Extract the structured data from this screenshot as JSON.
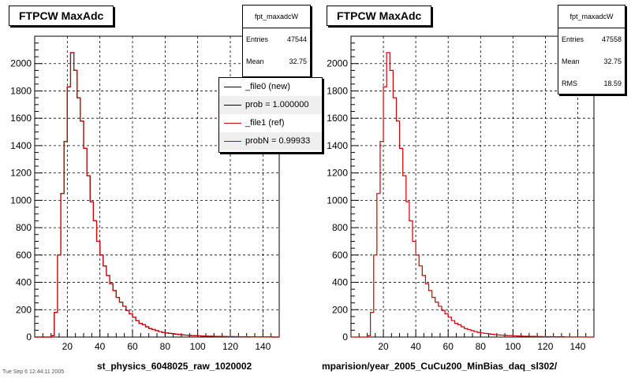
{
  "colors": {
    "new": "#000000",
    "ref": "#cc0000",
    "grid": "#000000"
  },
  "chart_data": [
    {
      "type": "line",
      "title": "FTPCW MaxAdc",
      "xlabel": "st_physics_6048025_raw_1020002",
      "xlim": [
        0,
        150
      ],
      "ylim": [
        0,
        2200
      ],
      "xticks": [
        20,
        40,
        60,
        80,
        100,
        120,
        140
      ],
      "yticks": [
        0,
        200,
        400,
        600,
        800,
        1000,
        1200,
        1400,
        1600,
        1800,
        2000
      ],
      "grid": true,
      "bin_width": 2,
      "x": [
        0,
        2,
        4,
        6,
        8,
        10,
        12,
        14,
        16,
        18,
        20,
        22,
        24,
        26,
        28,
        30,
        32,
        34,
        36,
        38,
        40,
        42,
        44,
        46,
        48,
        50,
        52,
        54,
        56,
        58,
        60,
        62,
        64,
        66,
        68,
        70,
        72,
        74,
        76,
        78,
        80,
        82,
        84,
        86,
        88,
        90,
        92,
        94,
        96,
        98,
        100,
        102,
        104,
        106,
        108,
        110,
        112,
        114,
        116,
        118,
        120,
        122,
        124,
        126,
        128,
        130,
        132,
        134,
        136,
        138,
        140,
        142,
        144,
        146,
        148
      ],
      "series": [
        {
          "name": "_file0 (new)",
          "values": [
            0,
            0,
            0,
            0,
            0,
            10,
            180,
            600,
            1050,
            1430,
            1830,
            2080,
            1950,
            1750,
            1580,
            1380,
            1180,
            990,
            850,
            700,
            600,
            520,
            450,
            390,
            340,
            290,
            255,
            225,
            195,
            170,
            145,
            120,
            100,
            90,
            75,
            62,
            55,
            47,
            40,
            34,
            30,
            27,
            24,
            21,
            18,
            16,
            14,
            13,
            11,
            10,
            9,
            8,
            7,
            6,
            6,
            5,
            5,
            4,
            4,
            3,
            3,
            3,
            2,
            2,
            2,
            2,
            1,
            1,
            1,
            1,
            1,
            1,
            1,
            0,
            0
          ]
        },
        {
          "name": "_file1 (ref)",
          "values": [
            0,
            0,
            0,
            0,
            0,
            10,
            180,
            600,
            1050,
            1430,
            1830,
            2080,
            1950,
            1750,
            1580,
            1380,
            1180,
            990,
            850,
            700,
            600,
            520,
            450,
            390,
            340,
            290,
            255,
            225,
            195,
            170,
            145,
            120,
            100,
            90,
            75,
            62,
            55,
            47,
            40,
            34,
            30,
            27,
            24,
            21,
            18,
            16,
            14,
            13,
            11,
            10,
            9,
            8,
            7,
            6,
            6,
            5,
            5,
            4,
            4,
            3,
            3,
            3,
            2,
            2,
            2,
            2,
            1,
            1,
            1,
            1,
            1,
            1,
            1,
            0,
            0
          ]
        }
      ]
    },
    {
      "type": "line",
      "title": "FTPCW MaxAdc",
      "xlabel": "mparision/year_2005_CuCu200_MinBias_daq_sl302/",
      "xlim": [
        0,
        150
      ],
      "ylim": [
        0,
        2200
      ],
      "xticks": [
        20,
        40,
        60,
        80,
        100,
        120,
        140
      ],
      "yticks": [
        0,
        200,
        400,
        600,
        800,
        1000,
        1200,
        1400,
        1600,
        1800,
        2000
      ],
      "grid": true,
      "bin_width": 2,
      "x": [
        0,
        2,
        4,
        6,
        8,
        10,
        12,
        14,
        16,
        18,
        20,
        22,
        24,
        26,
        28,
        30,
        32,
        34,
        36,
        38,
        40,
        42,
        44,
        46,
        48,
        50,
        52,
        54,
        56,
        58,
        60,
        62,
        64,
        66,
        68,
        70,
        72,
        74,
        76,
        78,
        80,
        82,
        84,
        86,
        88,
        90,
        92,
        94,
        96,
        98,
        100,
        102,
        104,
        106,
        108,
        110,
        112,
        114,
        116,
        118,
        120,
        122,
        124,
        126,
        128,
        130,
        132,
        134,
        136,
        138,
        140,
        142,
        144,
        146,
        148
      ],
      "series": [
        {
          "values": [
            0,
            0,
            0,
            0,
            0,
            10,
            180,
            600,
            1050,
            1430,
            1830,
            2080,
            1950,
            1750,
            1580,
            1380,
            1180,
            990,
            850,
            700,
            600,
            520,
            450,
            390,
            340,
            290,
            255,
            225,
            195,
            170,
            145,
            120,
            100,
            90,
            75,
            62,
            55,
            47,
            40,
            34,
            30,
            27,
            24,
            21,
            18,
            16,
            14,
            13,
            11,
            10,
            9,
            8,
            7,
            6,
            6,
            5,
            5,
            4,
            4,
            3,
            3,
            3,
            2,
            2,
            2,
            2,
            1,
            1,
            1,
            1,
            1,
            1,
            1,
            0,
            0
          ]
        }
      ]
    }
  ],
  "left": {
    "title": "FTPCW MaxAdc",
    "xlabel": "st_physics_6048025_raw_1020002",
    "stats": {
      "name": "fpt_maxadcW",
      "entries_label": "Entries",
      "entries_value": "47544",
      "mean_label": "Mean",
      "mean_value": "32.75"
    },
    "legend": {
      "row1": "_file0 (new)",
      "row2": "prob = 1.000000",
      "row3": "_file1 (ref)",
      "row4": "probN = 0.99933"
    }
  },
  "right": {
    "title": "FTPCW MaxAdc",
    "xlabel": "mparision/year_2005_CuCu200_MinBias_daq_sl302/",
    "stats": {
      "name": "fpt_maxadcW",
      "entries_label": "Entries",
      "entries_value": "47558",
      "mean_label": "Mean",
      "mean_value": "32.75",
      "rms_label": "RMS",
      "rms_value": "18.59"
    }
  },
  "footer_text": "Tue Sep 6 12:44:11 2005"
}
